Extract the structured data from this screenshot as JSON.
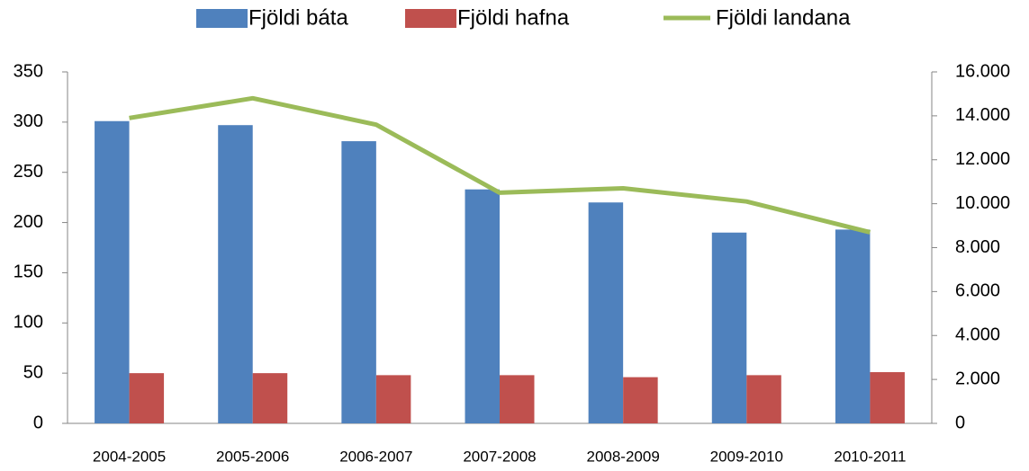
{
  "chart_data": {
    "type": "bar",
    "categories": [
      "2004-2005",
      "2005-2006",
      "2006-2007",
      "2007-2008",
      "2008-2009",
      "2009-2010",
      "2010-2011"
    ],
    "series": [
      {
        "name": "Fjöldi báta",
        "color": "#4f81bd",
        "values": [
          301,
          297,
          281,
          233,
          220,
          190,
          193
        ]
      },
      {
        "name": "Fjöldi hafna",
        "color": "#c0504d",
        "values": [
          50,
          50,
          48,
          48,
          46,
          48,
          51
        ]
      },
      {
        "name": "Fjöldi landana",
        "color": "#9bbb59",
        "type": "line",
        "axis": "y2",
        "values": [
          13900,
          14800,
          13600,
          10500,
          10700,
          10100,
          8700
        ]
      }
    ],
    "ylim": [
      0,
      350
    ],
    "yticks": [
      0,
      50,
      100,
      150,
      200,
      250,
      300,
      350
    ],
    "y2lim": [
      0,
      16000
    ],
    "y2ticks": [
      0,
      {
        "value": 2000,
        "label": "2.000"
      },
      {
        "value": 4000,
        "label": "4.000"
      },
      {
        "value": 6000,
        "label": "6.000"
      },
      {
        "value": 8000,
        "label": "8.000"
      },
      {
        "value": 10000,
        "label": "10.000"
      },
      {
        "value": 12000,
        "label": "12.000"
      },
      {
        "value": 14000,
        "label": "14.000"
      },
      {
        "value": 16000,
        "label": "16.000"
      }
    ],
    "legend": "top"
  }
}
